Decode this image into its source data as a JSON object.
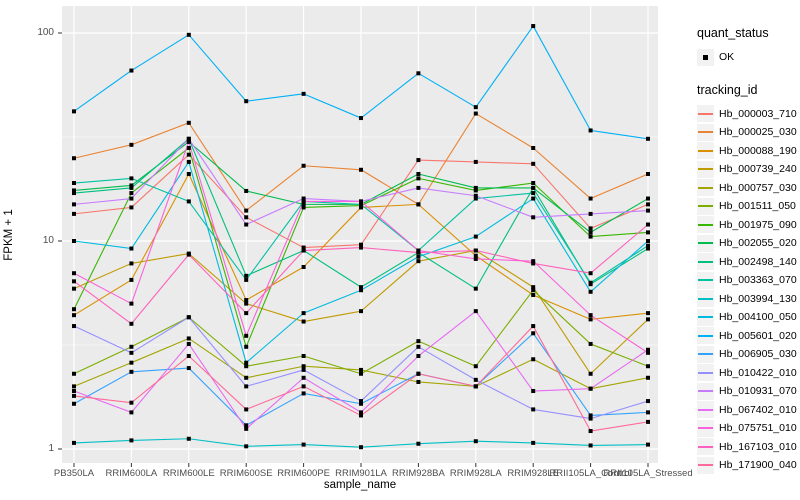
{
  "figure": {
    "background": "#FFFFFF",
    "panel_background": "#EBEBEB",
    "grid_color": "#FFFFFF",
    "axis_text_color": "#4D4D4D",
    "legend_key_background": "#F2F2F2",
    "marker_color": "#000000"
  },
  "chart_data": {
    "type": "line",
    "title": "",
    "xlabel": "sample_name",
    "ylabel": "FPKM + 1",
    "y_scale": "log10",
    "y_ticks": [
      1,
      10,
      100
    ],
    "y_tick_labels": [
      "1",
      "10",
      "100"
    ],
    "y_minor_ticks": [
      3.162,
      31.623
    ],
    "ylim": [
      0.85,
      135
    ],
    "grid": true,
    "legend_position": "right",
    "marker": "black-square",
    "categories": [
      "PB350LA",
      "RRIM600LA",
      "RRIM600LE",
      "RRIM600SE",
      "RRIM600PE",
      "RRIM901LA",
      "RRIM928BA",
      "RRIM928LA",
      "RRIM928LE",
      "RRII105LA_Control",
      "RRII105LA_Stressed"
    ],
    "legend": {
      "quant_status_title": "quant_status",
      "quant_items": [
        {
          "label": "OK",
          "marker": "black-square"
        }
      ],
      "tracking_id_title": "tracking_id"
    },
    "series": [
      {
        "name": "Hb_000003_710",
        "color": "#F8766D",
        "values": [
          13.5,
          14.5,
          26,
          13,
          9.3,
          9.6,
          24.5,
          24,
          23.5,
          11.5,
          15
        ]
      },
      {
        "name": "Hb_000025_030",
        "color": "#EA8331",
        "values": [
          25,
          29,
          37,
          14,
          23,
          22,
          15,
          41,
          28,
          16,
          21
        ]
      },
      {
        "name": "Hb_000088_190",
        "color": "#D89000",
        "values": [
          4.4,
          6.5,
          21,
          5.2,
          7.5,
          14.5,
          15,
          8.5,
          5.5,
          4.2,
          4.5
        ]
      },
      {
        "name": "Hb_000739_240",
        "color": "#C09B00",
        "values": [
          5.9,
          7.8,
          8.7,
          5.0,
          4.1,
          4.6,
          8.0,
          9.0,
          6.0,
          2.3,
          4.2
        ]
      },
      {
        "name": "Hb_000757_030",
        "color": "#A3A500",
        "values": [
          2.0,
          2.6,
          3.4,
          2.2,
          2.5,
          2.4,
          2.1,
          2.0,
          2.7,
          1.95,
          2.2
        ]
      },
      {
        "name": "Hb_001511_050",
        "color": "#7CAE00",
        "values": [
          2.3,
          3.1,
          4.3,
          2.5,
          2.8,
          2.3,
          3.3,
          2.5,
          5.8,
          3.2,
          2.5
        ]
      },
      {
        "name": "Hb_001975_090",
        "color": "#39B600",
        "values": [
          4.7,
          17,
          28,
          3.1,
          14.5,
          14.8,
          20,
          17.5,
          19,
          10.5,
          11
        ]
      },
      {
        "name": "Hb_002055_020",
        "color": "#00BB4E",
        "values": [
          17.5,
          18.5,
          30,
          17.4,
          15,
          15,
          21,
          18,
          18,
          11,
          16
        ]
      },
      {
        "name": "Hb_002498_140",
        "color": "#00BF7D",
        "values": [
          17,
          18,
          31,
          6.8,
          9.0,
          6.0,
          8.8,
          5.9,
          18,
          6.2,
          9.2
        ]
      },
      {
        "name": "Hb_003363_070",
        "color": "#00C1A3",
        "values": [
          19,
          20,
          15.5,
          6.5,
          15.5,
          15,
          9.0,
          16,
          17,
          6.3,
          9.5
        ]
      },
      {
        "name": "Hb_003994_130",
        "color": "#00BFC4",
        "values": [
          1.07,
          1.1,
          1.12,
          1.03,
          1.05,
          1.02,
          1.06,
          1.09,
          1.07,
          1.04,
          1.05
        ]
      },
      {
        "name": "Hb_004100_050",
        "color": "#00BAE0",
        "values": [
          10,
          9.2,
          24,
          2.6,
          4.5,
          5.8,
          8.4,
          10.5,
          16,
          5.7,
          10
        ]
      },
      {
        "name": "Hb_005601_020",
        "color": "#00B0F6",
        "values": [
          42,
          66,
          98,
          47,
          51,
          39,
          64,
          44,
          108,
          34,
          31
        ]
      },
      {
        "name": "Hb_006905_030",
        "color": "#35A2FF",
        "values": [
          1.65,
          2.35,
          2.45,
          1.3,
          1.85,
          1.65,
          2.3,
          2.0,
          3.6,
          1.45,
          1.5
        ]
      },
      {
        "name": "Hb_010422_010",
        "color": "#9590FF",
        "values": [
          3.9,
          2.9,
          4.3,
          2.0,
          2.4,
          1.7,
          3.1,
          2.15,
          1.55,
          1.4,
          1.7
        ]
      },
      {
        "name": "Hb_010931_070",
        "color": "#C77CFF",
        "values": [
          15,
          16,
          31,
          12,
          16,
          15.5,
          18,
          16.5,
          13,
          13.5,
          14
        ]
      },
      {
        "name": "Hb_067402_010",
        "color": "#E76BF3",
        "values": [
          1.9,
          1.5,
          3.2,
          1.25,
          2.2,
          1.5,
          2.8,
          4.6,
          1.9,
          1.95,
          3.0
        ]
      },
      {
        "name": "Hb_075751_010",
        "color": "#FA62DB",
        "values": [
          7.0,
          5.0,
          30,
          3.5,
          15.5,
          15.5,
          9.0,
          8.2,
          8.0,
          4.4,
          2.9
        ]
      },
      {
        "name": "Hb_167103_010",
        "color": "#FF62BC",
        "values": [
          6.4,
          4.0,
          8.6,
          4.5,
          9.0,
          9.3,
          8.8,
          9.0,
          7.8,
          7.0,
          12
        ]
      },
      {
        "name": "Hb_171900_040",
        "color": "#FF6A98",
        "values": [
          1.8,
          1.67,
          2.8,
          1.55,
          2.0,
          1.45,
          2.3,
          2.0,
          3.9,
          1.22,
          1.35
        ]
      }
    ]
  }
}
